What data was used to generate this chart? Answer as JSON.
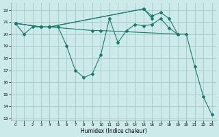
{
  "background_color": "#cceaea",
  "grid_color": "#aacccc",
  "line_color": "#1a7a6e",
  "xlabel": "Humidex (Indice chaleur)",
  "xlim": [
    -0.5,
    23.5
  ],
  "ylim": [
    12.8,
    22.6
  ],
  "yticks": [
    13,
    14,
    15,
    16,
    17,
    18,
    19,
    20,
    21,
    22
  ],
  "xticks": [
    0,
    1,
    2,
    3,
    4,
    5,
    6,
    7,
    8,
    9,
    10,
    11,
    12,
    13,
    14,
    15,
    16,
    17,
    18,
    19,
    20,
    21,
    22,
    23
  ],
  "series": [
    {
      "x": [
        0,
        1,
        2,
        4,
        5,
        6,
        7,
        8,
        9,
        10,
        11,
        12,
        13,
        14,
        15,
        16,
        17,
        18,
        19,
        20,
        21,
        22,
        23
      ],
      "y": [
        20.9,
        20.0,
        20.6,
        20.6,
        20.6,
        19.0,
        17.0,
        16.4,
        16.7,
        18.3,
        21.3,
        19.3,
        20.3,
        20.8,
        20.7,
        20.8,
        21.3,
        20.5,
        20.0,
        20.0,
        17.3,
        14.8,
        13.3
      ]
    },
    {
      "x": [
        0,
        3,
        4,
        9,
        10,
        19
      ],
      "y": [
        20.9,
        20.6,
        20.6,
        20.3,
        20.3,
        20.0
      ]
    },
    {
      "x": [
        0,
        3,
        4,
        15,
        16,
        17,
        18,
        19
      ],
      "y": [
        20.9,
        20.6,
        20.6,
        22.1,
        21.5,
        21.8,
        21.3,
        20.0
      ]
    },
    {
      "x": [
        0,
        3,
        4,
        15,
        16
      ],
      "y": [
        20.9,
        20.6,
        20.6,
        22.1,
        21.3
      ]
    }
  ]
}
